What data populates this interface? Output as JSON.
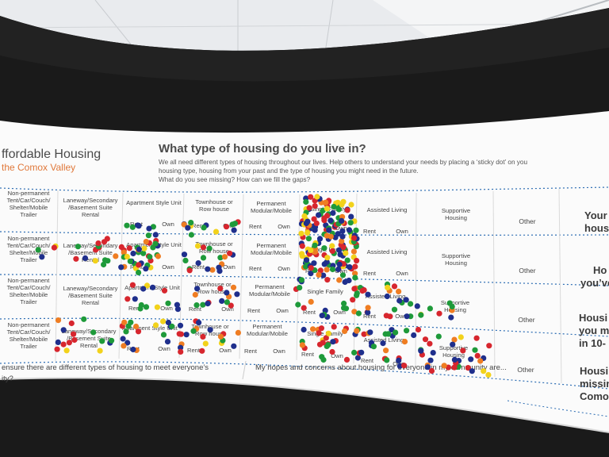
{
  "banner": {
    "brand_title": "ffordable Housing",
    "brand_subtitle": "the Comox Valley",
    "question": "What type of housing do you live in?",
    "intro_lines": [
      "We all need different types of housing throughout our lives. Help others to understand your needs by placing a ‘sticky dot’ on you",
      "housing type, housing from your past and the type of housing you might need in the future.",
      "What do you see missing? How can we fill the gaps?"
    ]
  },
  "columns": [
    {
      "key": "nonperm",
      "lines": [
        "Non-permanent",
        "Tent/Car/Couch/",
        "Shelter/Mobile",
        "Trailer"
      ]
    },
    {
      "key": "laneway",
      "lines": [
        "Laneway/Secondary",
        "/Basement Suite",
        "Rental"
      ]
    },
    {
      "key": "apartment",
      "lines": [
        "Apartment Style Unit"
      ],
      "sub": [
        "Rent",
        "Own"
      ]
    },
    {
      "key": "townhouse",
      "lines": [
        "Townhouse or",
        "Row house"
      ],
      "sub": [
        "Rent",
        "Own"
      ]
    },
    {
      "key": "modular",
      "lines": [
        "Permanent",
        "Modular/Mobile"
      ],
      "sub": [
        "Rent",
        "Own"
      ]
    },
    {
      "key": "single",
      "lines": [
        "Single Family"
      ],
      "sub": [
        "Rent",
        "Own"
      ]
    },
    {
      "key": "assisted",
      "lines": [
        "Assisted Living"
      ],
      "sub": [
        "Rent",
        "Own"
      ]
    },
    {
      "key": "supportive",
      "lines": [
        "Supportive",
        "Housing"
      ]
    },
    {
      "key": "other",
      "lines": [
        "Other"
      ]
    }
  ],
  "row_prompts": [
    [
      "Your",
      "hous"
    ],
    [
      "Ho",
      "you’ve"
    ],
    [
      "Housi",
      "you m",
      "in 10-"
    ],
    [
      "Housi",
      "missin",
      "Como"
    ]
  ],
  "footer": {
    "left_line1": "ensure there are different types of housing to meet everyone’s",
    "left_line2": "ity?",
    "right": "My hopes and concerns about housing for everyone in my community are..."
  },
  "dot_colors": {
    "blue": "#1f2f8c",
    "green": "#1e9a3a",
    "red": "#d7262e",
    "yellow": "#f2d21b",
    "orange": "#ef7d22"
  },
  "colors": {
    "heading": "#4a4a4a",
    "accent": "#e0783a",
    "grid": "#2d6db3"
  }
}
